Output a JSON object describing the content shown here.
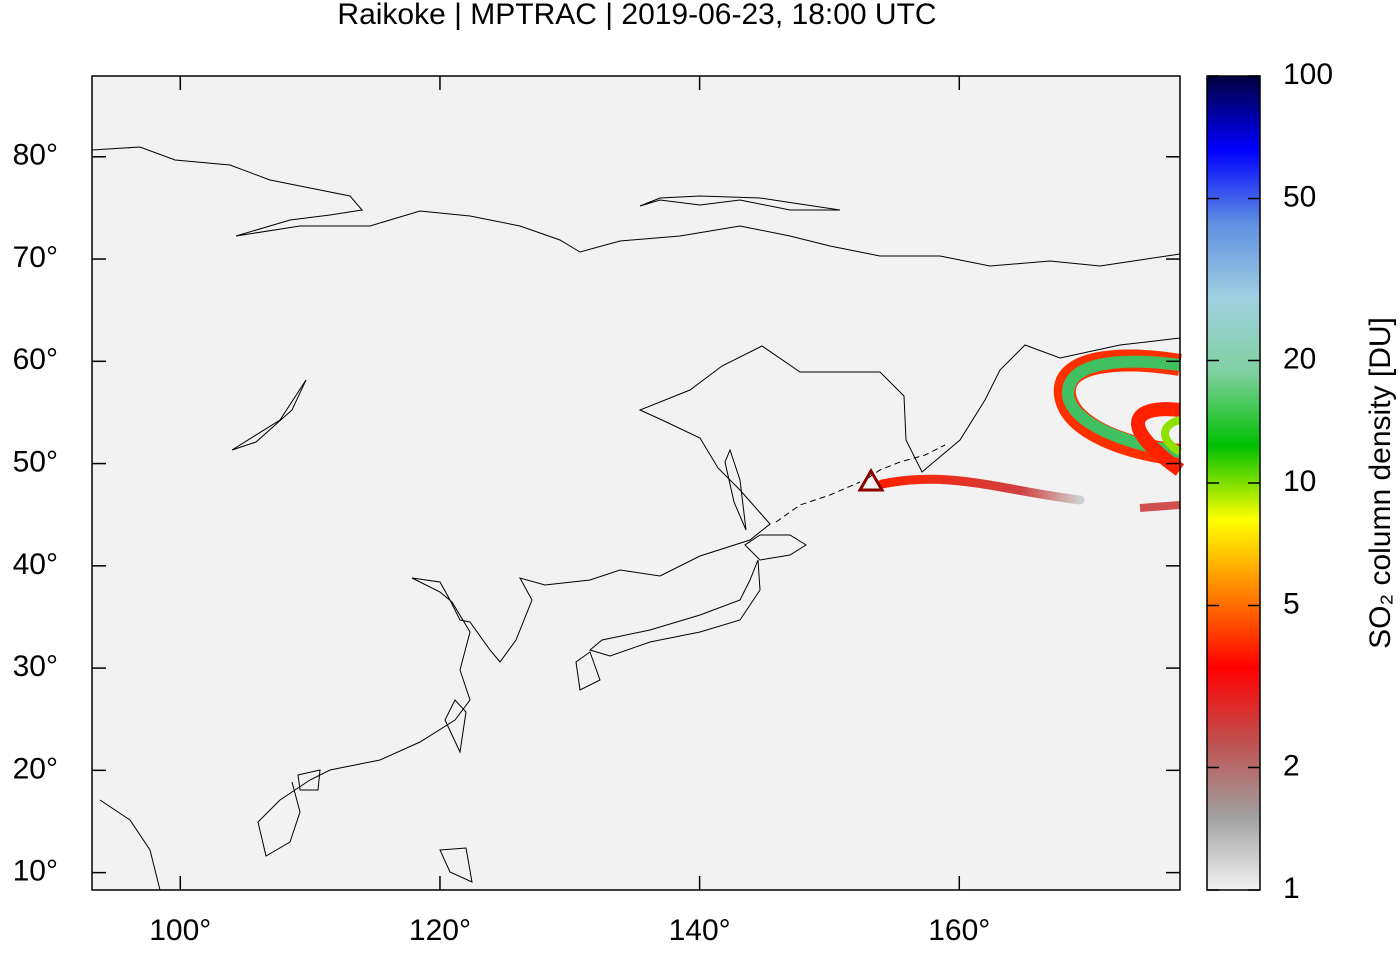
{
  "chart_data": {
    "type": "map",
    "title": "Raikoke | MPTRAC | 2019-06-23, 18:00 UTC",
    "xlim": [
      93.2,
      177
    ],
    "ylim": [
      8.3,
      87.9
    ],
    "xticks": [
      {
        "value": 100,
        "label": "100°"
      },
      {
        "value": 120,
        "label": "120°"
      },
      {
        "value": 140,
        "label": "140°"
      },
      {
        "value": 160,
        "label": "160°"
      }
    ],
    "yticks": [
      {
        "value": 10,
        "label": "10°"
      },
      {
        "value": 20,
        "label": "20°"
      },
      {
        "value": 30,
        "label": "30°"
      },
      {
        "value": 40,
        "label": "40°"
      },
      {
        "value": 50,
        "label": "50°"
      },
      {
        "value": 60,
        "label": "60°"
      },
      {
        "value": 70,
        "label": "70°"
      },
      {
        "value": 80,
        "label": "80°"
      }
    ],
    "volcano": {
      "x": 153.2,
      "y": 48.3,
      "color": "#8b0000"
    },
    "colorbar": {
      "label": "SO₂ column density [DU]",
      "log": true,
      "lim": [
        1,
        100
      ],
      "ticks": [
        1,
        2,
        5,
        10,
        20,
        50,
        100
      ],
      "colors": [
        "#f2f2f2",
        "#a0a0a0",
        "#c05050",
        "#ff0000",
        "#ff8000",
        "#ffff00",
        "#00c000",
        "#80d0a0",
        "#a0d0e0",
        "#6090e0",
        "#0000ff",
        "#000040"
      ]
    }
  }
}
